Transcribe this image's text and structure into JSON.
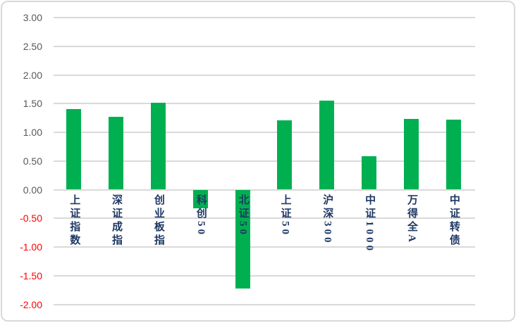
{
  "chart_data": {
    "type": "bar",
    "title": "",
    "xlabel": "",
    "ylabel": "",
    "categories": [
      "上证指数",
      "深证成指",
      "创业板指",
      "科创50",
      "北证50",
      "上证50",
      "沪深300",
      "中证1000",
      "万得全A",
      "中证转债"
    ],
    "values": [
      1.41,
      1.27,
      1.52,
      -0.32,
      -1.72,
      1.21,
      1.55,
      0.58,
      1.23,
      1.22
    ],
    "ylim": [
      -2.0,
      3.0
    ],
    "ytick_step": 0.5,
    "y_ticks": [
      "3.00",
      "2.50",
      "2.00",
      "1.50",
      "1.00",
      "0.50",
      "0.00",
      "-0.50",
      "-1.00",
      "-1.50",
      "-2.00"
    ],
    "grid": true,
    "legend": false,
    "colors": {
      "bar": "#00B050",
      "positive_tick": "#595959",
      "negative_tick": "#FF0000",
      "category_label": "#1F3864",
      "gridline": "#D9D9D9",
      "frame_border": "#D9D9D9",
      "background": "#FFFFFF"
    }
  }
}
